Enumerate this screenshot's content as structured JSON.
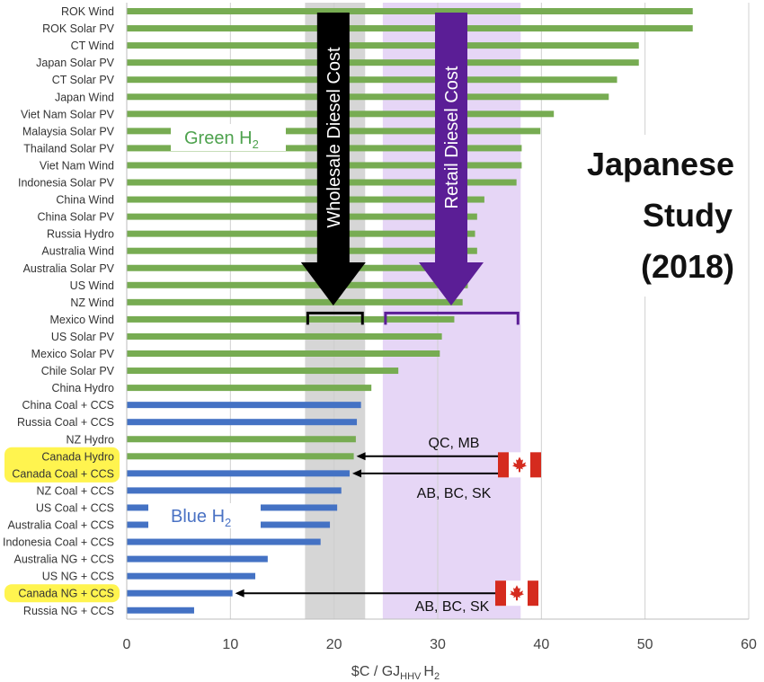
{
  "chart_data": {
    "type": "bar",
    "orientation": "horizontal",
    "categories": [
      "ROK Wind",
      "ROK Solar PV",
      "CT Wind",
      "Japan Solar PV",
      "CT Solar PV",
      "Japan Wind",
      "Viet Nam Solar PV",
      "Malaysia Solar PV",
      "Thailand Solar PV",
      "Viet Nam Wind",
      "Indonesia Solar PV",
      "China Wind",
      "China Solar PV",
      "Russia Hydro",
      "Australia Wind",
      "Australia Solar PV",
      "US Wind",
      "NZ Wind",
      "Mexico Wind",
      "US Solar PV",
      "Mexico Solar PV",
      "Chile Solar PV",
      "China Hydro",
      "China Coal + CCS",
      "Russia Coal + CCS",
      "NZ Hydro",
      "Canada Hydro",
      "Canada Coal + CCS",
      "NZ Coal + CCS",
      "US Coal + CCS",
      "Australia Coal + CCS",
      "Indonesia Coal + CCS",
      "Australia NG + CCS",
      "US NG + CCS",
      "Canada NG + CCS",
      "Russia NG + CCS"
    ],
    "values": [
      54.6,
      54.6,
      49.4,
      49.4,
      47.3,
      46.5,
      41.2,
      39.9,
      38.1,
      38.1,
      37.6,
      34.5,
      33.8,
      33.6,
      33.8,
      33.8,
      32.9,
      32.4,
      31.6,
      30.4,
      30.2,
      26.2,
      23.6,
      22.6,
      22.2,
      22.1,
      21.9,
      21.5,
      20.7,
      20.3,
      19.6,
      18.7,
      13.6,
      12.4,
      10.2,
      6.5
    ],
    "groups": [
      "green",
      "green",
      "green",
      "green",
      "green",
      "green",
      "green",
      "green",
      "green",
      "green",
      "green",
      "green",
      "green",
      "green",
      "green",
      "green",
      "green",
      "green",
      "green",
      "green",
      "green",
      "green",
      "green",
      "blue",
      "blue",
      "green",
      "green",
      "blue",
      "blue",
      "blue",
      "blue",
      "blue",
      "blue",
      "blue",
      "blue",
      "blue"
    ],
    "highlighted": [
      "Canada Hydro",
      "Canada Coal + CCS",
      "Canada NG + CCS"
    ],
    "xlim": [
      0,
      60
    ],
    "xticks": [
      "0",
      "10",
      "20",
      "30",
      "40",
      "50",
      "60"
    ],
    "xlabel": "$C / GJ",
    "xlabel_sub": "HHV",
    "xlabel_suffix": "H",
    "xlabel_sub2": "2",
    "grid": true,
    "bands": [
      {
        "label": "Wholesale Diesel Cost",
        "range": [
          17.2,
          23.0
        ],
        "color": "#d6d6d6",
        "arrow_color": "#000000"
      },
      {
        "label": "Retail Diesel Cost",
        "range": [
          24.7,
          38.0
        ],
        "color": "#e6d6f6",
        "arrow_color": "#5b1e96"
      }
    ],
    "series_labels": [
      {
        "text": "Green H",
        "sub": "2",
        "color": "#4ea24e"
      },
      {
        "text": "Blue H",
        "sub": "2",
        "color": "#4a72c4"
      }
    ],
    "annotations": [
      {
        "text": "QC, MB",
        "target": "Canada Hydro"
      },
      {
        "text": "AB, BC, SK",
        "target": "Canada Coal + CCS"
      },
      {
        "text": "AB, BC, SK",
        "target": "Canada NG + CCS"
      }
    ],
    "study_title": [
      "Japanese",
      "Study",
      "(2018)"
    ],
    "colors": {
      "green": "#77ac52",
      "blue": "#4472c4",
      "highlight": "#fff44f",
      "flag_red": "#d52b1e"
    }
  }
}
